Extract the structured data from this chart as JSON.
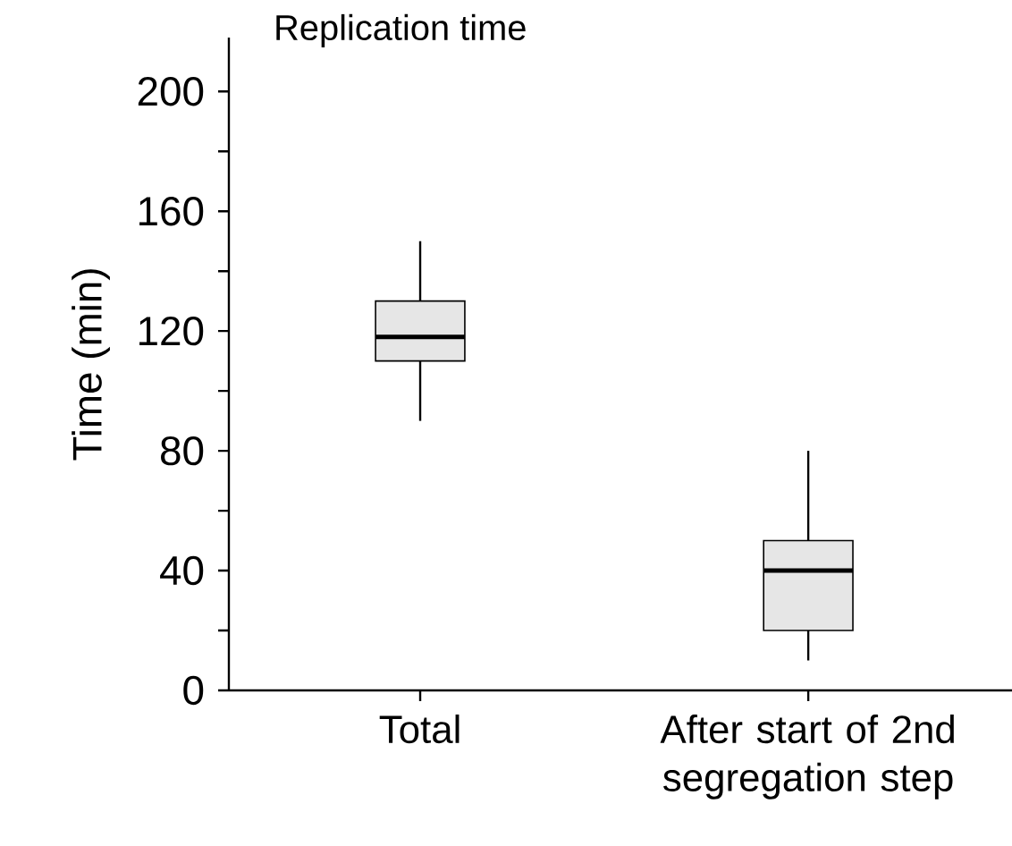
{
  "chart_data": {
    "type": "box",
    "title": "Replication time",
    "ylabel": "Time (min)",
    "categories": [
      "Total",
      "After start of 2nd segregation step"
    ],
    "series": [
      {
        "color": "#e6e6e6",
        "boxes": [
          {
            "low": 90,
            "q1": 110,
            "median": 118,
            "q3": 130,
            "high": 150
          },
          {
            "low": 10,
            "q1": 20,
            "median": 40,
            "q3": 50,
            "high": 80
          }
        ]
      }
    ],
    "ylim": [
      0,
      218
    ],
    "yticks": [
      0,
      {
        "value": 20,
        "label": null
      },
      40,
      {
        "value": 60,
        "label": null
      },
      80,
      {
        "value": 100,
        "label": null
      },
      120,
      {
        "value": 140,
        "label": null
      },
      160,
      {
        "value": 180,
        "label": null
      },
      200
    ]
  }
}
